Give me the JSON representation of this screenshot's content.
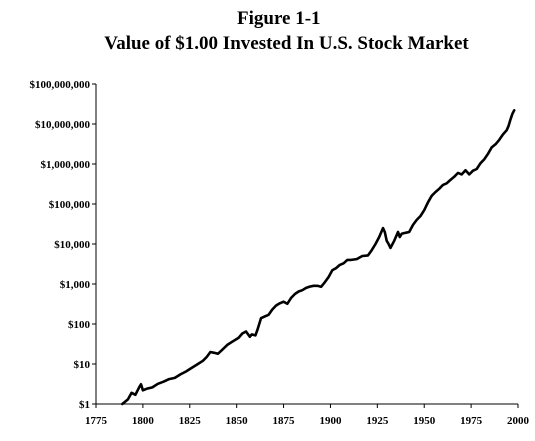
{
  "figure": {
    "number_label": "Figure 1-1",
    "title": "Value of $1.00 Invested In U.S. Stock Market"
  },
  "chart_data": {
    "type": "line",
    "title": "Value of $1.00 Invested In U.S. Stock Market",
    "xlabel": "",
    "ylabel": "",
    "y_scale": "log",
    "xlim": [
      1775,
      2000
    ],
    "ylim": [
      1,
      100000000
    ],
    "x_ticks": [
      1775,
      1800,
      1825,
      1850,
      1875,
      1900,
      1925,
      1950,
      1975,
      2000
    ],
    "x_tick_labels": [
      "1775",
      "1800",
      "1825",
      "1850",
      "1875",
      "1900",
      "1925",
      "1950",
      "1975",
      "2000"
    ],
    "y_ticks": [
      1,
      10,
      100,
      1000,
      10000,
      100000,
      1000000,
      10000000,
      100000000
    ],
    "y_tick_labels": [
      "$1",
      "$10",
      "$100",
      "$1,000",
      "$10,000",
      "$100,000",
      "$1,000,000",
      "$10,000,000",
      "$100,000,000"
    ],
    "grid": false,
    "legend": "none",
    "line_color": "#000000",
    "series": [
      {
        "x": [
          1789,
          1792,
          1794,
          1796,
          1798,
          1799,
          1800,
          1802,
          1805,
          1808,
          1811,
          1814,
          1817,
          1820,
          1823,
          1826,
          1829,
          1832,
          1834,
          1836,
          1838,
          1840,
          1842,
          1845,
          1848,
          1851,
          1853,
          1855,
          1857,
          1858,
          1860,
          1861,
          1863,
          1865,
          1867,
          1869,
          1871,
          1873,
          1875,
          1877,
          1879,
          1881,
          1883,
          1885,
          1887,
          1889,
          1891,
          1893,
          1895,
          1897,
          1899,
          1901,
          1903,
          1905,
          1907,
          1909,
          1911,
          1914,
          1917,
          1920,
          1922,
          1924,
          1926,
          1928,
          1929,
          1930,
          1931,
          1932,
          1934,
          1936,
          1937,
          1938,
          1940,
          1942,
          1944,
          1946,
          1948,
          1950,
          1952,
          1954,
          1956,
          1958,
          1960,
          1962,
          1964,
          1966,
          1968,
          1970,
          1972,
          1974,
          1976,
          1978,
          1980,
          1982,
          1984,
          1986,
          1988,
          1990,
          1992,
          1994,
          1995,
          1996,
          1997,
          1998
        ],
        "y": [
          1.0,
          1.3,
          1.9,
          1.7,
          2.6,
          3.1,
          2.2,
          2.4,
          2.6,
          3.2,
          3.6,
          4.2,
          4.5,
          5.5,
          6.5,
          8.0,
          9.8,
          12,
          15,
          20,
          19,
          18,
          22,
          30,
          37,
          45,
          58,
          65,
          48,
          55,
          52,
          70,
          140,
          155,
          170,
          230,
          290,
          330,
          360,
          320,
          450,
          560,
          650,
          700,
          800,
          860,
          900,
          900,
          850,
          1100,
          1500,
          2200,
          2500,
          3000,
          3300,
          4000,
          4000,
          4200,
          5000,
          5200,
          7000,
          10000,
          15000,
          25000,
          20000,
          12000,
          10000,
          8000,
          12000,
          20000,
          15000,
          18000,
          19000,
          20000,
          30000,
          40000,
          50000,
          70000,
          110000,
          160000,
          200000,
          240000,
          300000,
          330000,
          400000,
          480000,
          600000,
          550000,
          700000,
          550000,
          680000,
          750000,
          1050000,
          1300000,
          1800000,
          2600000,
          3100000,
          4000000,
          5500000,
          7000000,
          9000000,
          13000000,
          18000000,
          22000000
        ]
      }
    ]
  }
}
